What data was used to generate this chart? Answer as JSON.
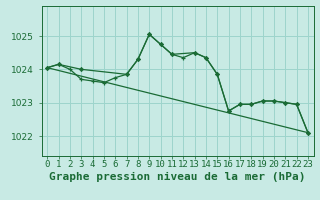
{
  "title": "Graphe pression niveau de la mer (hPa)",
  "bg_color": "#c8eae4",
  "grid_color": "#9dd4cc",
  "line_color": "#1a6b35",
  "xlim": [
    -0.5,
    23.5
  ],
  "ylim": [
    1021.4,
    1025.9
  ],
  "yticks": [
    1022,
    1023,
    1024,
    1025
  ],
  "xtick_labels": [
    "0",
    "1",
    "2",
    "3",
    "4",
    "5",
    "6",
    "7",
    "8",
    "9",
    "10",
    "11",
    "12",
    "13",
    "14",
    "15",
    "16",
    "17",
    "18",
    "19",
    "20",
    "21",
    "22",
    "23"
  ],
  "series1_x": [
    0,
    1,
    2,
    3,
    4,
    5,
    6,
    7,
    8,
    9,
    10,
    11,
    12,
    13,
    14,
    15,
    16,
    17,
    18,
    19,
    20,
    21,
    22,
    23
  ],
  "series1_y": [
    1024.05,
    1024.15,
    1024.0,
    1023.7,
    1023.65,
    1023.6,
    1023.75,
    1023.85,
    1024.3,
    1025.05,
    1024.75,
    1024.45,
    1024.35,
    1024.5,
    1024.35,
    1023.85,
    1022.75,
    1022.95,
    1022.95,
    1023.05,
    1023.05,
    1023.0,
    1022.95,
    1022.1
  ],
  "series2_x": [
    0,
    1,
    3,
    7,
    8,
    9,
    10,
    11,
    13,
    14,
    15,
    16,
    17,
    18,
    19,
    20,
    21,
    22,
    23
  ],
  "series2_y": [
    1024.05,
    1024.15,
    1024.0,
    1023.85,
    1024.3,
    1025.05,
    1024.75,
    1024.45,
    1024.5,
    1024.35,
    1023.85,
    1022.75,
    1022.95,
    1022.95,
    1023.05,
    1023.05,
    1023.0,
    1022.95,
    1022.1
  ],
  "trend_x": [
    0,
    23
  ],
  "trend_y": [
    1024.05,
    1022.1
  ],
  "title_fontsize": 8,
  "tick_fontsize": 6.5,
  "title_color": "#1a6b35"
}
